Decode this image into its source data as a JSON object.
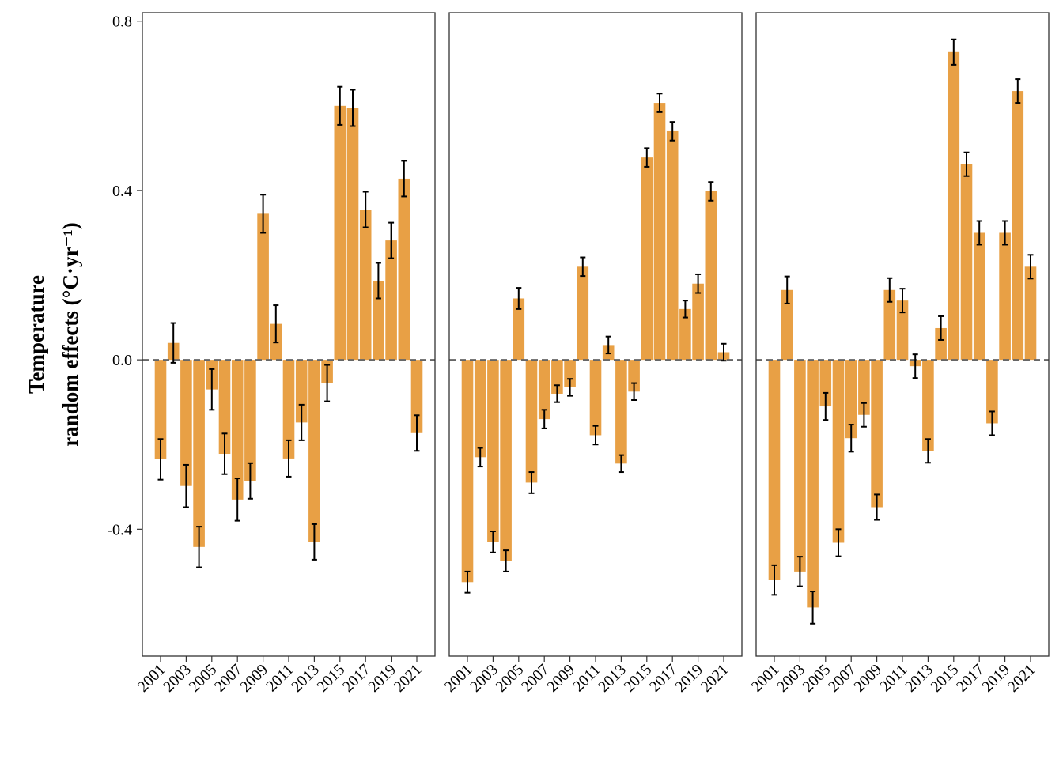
{
  "chart_data": {
    "type": "bar",
    "ylabel_lines": [
      "Temperature",
      "random effects (°C·yr⁻¹)"
    ],
    "ylim": [
      -0.7,
      0.82
    ],
    "y_ticks": [
      -0.4,
      0.0,
      0.4,
      0.8
    ],
    "y_tick_labels": [
      "-0.4",
      "0.0",
      "0.4",
      "0.8"
    ],
    "reference_line": 0.0,
    "x_tick_labels": [
      "2001",
      "2003",
      "2005",
      "2007",
      "2009",
      "2011",
      "2013",
      "2015",
      "2017",
      "2019",
      "2021"
    ],
    "bar_color": "#E8A045",
    "errorbar_color": "#000000",
    "panels": [
      {
        "years": [
          2001,
          2002,
          2003,
          2004,
          2005,
          2006,
          2007,
          2008,
          2009,
          2010,
          2011,
          2012,
          2013,
          2014,
          2015,
          2016,
          2017,
          2018,
          2019,
          2020,
          2021
        ],
        "values": [
          -0.235,
          0.04,
          -0.298,
          -0.442,
          -0.07,
          -0.222,
          -0.33,
          -0.286,
          0.345,
          0.085,
          -0.233,
          -0.148,
          -0.43,
          -0.055,
          0.6,
          0.595,
          0.355,
          0.187,
          0.282,
          0.428,
          -0.173
        ],
        "errors": [
          0.048,
          0.047,
          0.05,
          0.048,
          0.048,
          0.048,
          0.05,
          0.042,
          0.045,
          0.044,
          0.043,
          0.042,
          0.042,
          0.043,
          0.045,
          0.043,
          0.042,
          0.042,
          0.042,
          0.042,
          0.042
        ]
      },
      {
        "years": [
          2001,
          2002,
          2003,
          2004,
          2005,
          2006,
          2007,
          2008,
          2009,
          2010,
          2011,
          2012,
          2013,
          2014,
          2015,
          2016,
          2017,
          2018,
          2019,
          2020,
          2021
        ],
        "values": [
          -0.525,
          -0.23,
          -0.43,
          -0.475,
          0.145,
          -0.29,
          -0.14,
          -0.08,
          -0.065,
          0.22,
          -0.178,
          0.035,
          -0.245,
          -0.075,
          0.478,
          0.607,
          0.54,
          0.12,
          0.18,
          0.398,
          0.018
        ],
        "errors": [
          0.025,
          0.022,
          0.025,
          0.025,
          0.025,
          0.025,
          0.022,
          0.02,
          0.02,
          0.022,
          0.022,
          0.02,
          0.02,
          0.02,
          0.022,
          0.022,
          0.022,
          0.02,
          0.022,
          0.022,
          0.02
        ]
      },
      {
        "years": [
          2001,
          2002,
          2003,
          2004,
          2005,
          2006,
          2007,
          2008,
          2009,
          2010,
          2011,
          2012,
          2013,
          2014,
          2015,
          2016,
          2017,
          2018,
          2019,
          2020,
          2021
        ],
        "values": [
          -0.52,
          0.165,
          -0.5,
          -0.585,
          -0.11,
          -0.432,
          -0.185,
          -0.13,
          -0.348,
          0.165,
          0.14,
          -0.015,
          -0.215,
          0.075,
          0.727,
          0.462,
          0.3,
          -0.15,
          0.3,
          0.635,
          0.22
        ],
        "errors": [
          0.035,
          0.032,
          0.035,
          0.038,
          0.032,
          0.032,
          0.032,
          0.028,
          0.03,
          0.028,
          0.028,
          0.028,
          0.028,
          0.028,
          0.03,
          0.028,
          0.028,
          0.028,
          0.028,
          0.028,
          0.028
        ]
      }
    ]
  }
}
